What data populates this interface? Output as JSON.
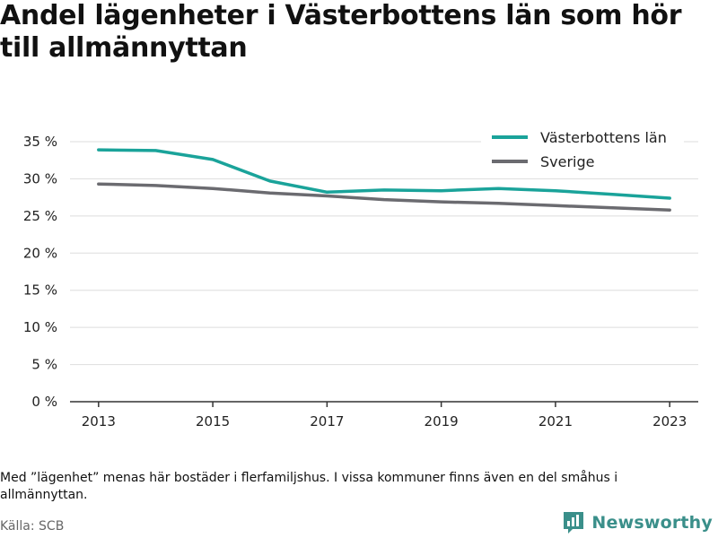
{
  "title": "Andel lägenheter i Västerbottens län som hör till allmännyttan",
  "note": "Med ”lägenhet” menas här bostäder i flerfamiljshus. I vissa kommuner finns även en del småhus i allmännyttan.",
  "source": "Källa: SCB",
  "brand": {
    "name": "Newsworthy",
    "icon": "newsworthy-logo-icon"
  },
  "colors": {
    "vasterbotten": "#1aa39a",
    "sverige": "#6b6b70",
    "grid": "#dddddd",
    "axis": "#333333"
  },
  "chart_data": {
    "type": "line",
    "x": [
      2013,
      2014,
      2015,
      2016,
      2017,
      2018,
      2019,
      2020,
      2021,
      2022,
      2023
    ],
    "x_ticks": [
      2013,
      2015,
      2017,
      2019,
      2021,
      2023
    ],
    "x_tick_labels": [
      "2013",
      "2015",
      "2017",
      "2019",
      "2021",
      "2023"
    ],
    "ylim": [
      0,
      35
    ],
    "y_ticks": [
      0,
      5,
      10,
      15,
      20,
      25,
      30,
      35
    ],
    "y_tick_labels": [
      "0 %",
      "5 %",
      "10 %",
      "15 %",
      "20 %",
      "25 %",
      "30 %",
      "35 %"
    ],
    "grid": true,
    "legend_position": "top-right",
    "series": [
      {
        "name": "Västerbottens län",
        "values": [
          33.9,
          33.8,
          32.6,
          29.7,
          28.2,
          28.5,
          28.4,
          28.7,
          28.4,
          27.9,
          27.4
        ]
      },
      {
        "name": "Sverige",
        "values": [
          29.3,
          29.1,
          28.7,
          28.1,
          27.7,
          27.2,
          26.9,
          26.7,
          26.4,
          26.1,
          25.8
        ]
      }
    ]
  }
}
